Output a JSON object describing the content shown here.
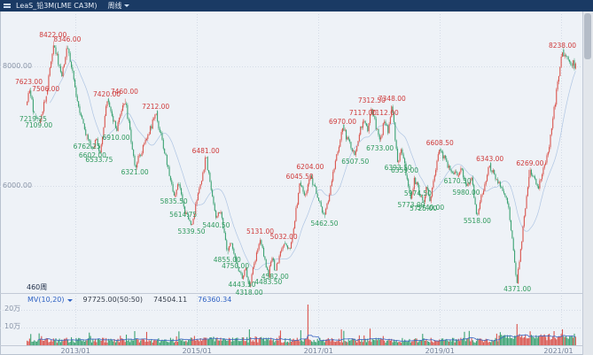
{
  "header": {
    "title": "LeaS_铅3M(LME CA3M)",
    "period": "周线"
  },
  "indicator_bar": {
    "bars_count": "460周",
    "mv_label": "MV(10,20)",
    "values": [
      {
        "name": "current",
        "text": "97725.00(50:50)",
        "color": "#39414e"
      },
      {
        "name": "ma10",
        "text": "74504.11",
        "color": "#39414e"
      },
      {
        "name": "ma20",
        "text": "76360.34",
        "color": "#2f62c4"
      }
    ]
  },
  "colors": {
    "up": "#d9544d",
    "down": "#3ba272",
    "up_label": "#cf3b3b",
    "down_label": "#2f9a5d",
    "grid": "#d4dbe6",
    "divider": "#c2cad6",
    "vol_ma": "#3b66c4",
    "price_ma": "#7aa0d4",
    "titlebar_bg": "#1a3a64",
    "accent_blue": "#2f62c4"
  },
  "chart_data": {
    "type": "candlestick",
    "instrument": "LeaS_铅3M(LME CA3M)",
    "period": "周线",
    "weeks_visible": 460,
    "convention": "red=up green=down",
    "ylim": [
      4200,
      8900
    ],
    "y_ticks": [
      {
        "label": "8000.00",
        "price": 8000
      },
      {
        "label": "6000.00",
        "price": 6000
      }
    ],
    "volume_ticks": [
      {
        "label": "20万",
        "wan": 20
      },
      {
        "label": "10万",
        "wan": 10
      }
    ],
    "x_ticks": [
      {
        "label": "2013/01",
        "f": 0.089
      },
      {
        "label": "2015/01",
        "f": 0.31
      },
      {
        "label": "2017/01",
        "f": 0.531
      },
      {
        "label": "2019/01",
        "f": 0.752
      },
      {
        "label": "2021/01",
        "f": 0.973
      }
    ],
    "price_anchors": [
      [
        0.0,
        7350
      ],
      [
        0.004,
        7623
      ],
      [
        0.012,
        7219.25
      ],
      [
        0.022,
        7109
      ],
      [
        0.035,
        7506
      ],
      [
        0.048,
        8422
      ],
      [
        0.062,
        7850
      ],
      [
        0.074,
        8346
      ],
      [
        0.09,
        7500
      ],
      [
        0.11,
        6762.25
      ],
      [
        0.12,
        6602
      ],
      [
        0.126,
        6800
      ],
      [
        0.132,
        6533.75
      ],
      [
        0.146,
        7420
      ],
      [
        0.163,
        6910
      ],
      [
        0.178,
        7460
      ],
      [
        0.197,
        6321
      ],
      [
        0.235,
        7212
      ],
      [
        0.268,
        5835.5
      ],
      [
        0.277,
        6080
      ],
      [
        0.285,
        5614.75
      ],
      [
        0.3,
        5339.5
      ],
      [
        0.326,
        6481
      ],
      [
        0.345,
        5440.5
      ],
      [
        0.352,
        5620
      ],
      [
        0.365,
        4855
      ],
      [
        0.372,
        5090
      ],
      [
        0.38,
        4750
      ],
      [
        0.392,
        4443.5
      ],
      [
        0.398,
        4620
      ],
      [
        0.405,
        4318
      ],
      [
        0.425,
        5131
      ],
      [
        0.44,
        4483.5
      ],
      [
        0.446,
        4860
      ],
      [
        0.452,
        4582
      ],
      [
        0.468,
        5032
      ],
      [
        0.48,
        4920
      ],
      [
        0.497,
        6045.5
      ],
      [
        0.507,
        5840
      ],
      [
        0.516,
        6204
      ],
      [
        0.542,
        5462.5
      ],
      [
        0.575,
        6970
      ],
      [
        0.598,
        6507.5
      ],
      [
        0.612,
        7117
      ],
      [
        0.62,
        6920
      ],
      [
        0.628,
        7312.5
      ],
      [
        0.643,
        6733
      ],
      [
        0.652,
        7112
      ],
      [
        0.658,
        6930
      ],
      [
        0.665,
        7348
      ],
      [
        0.676,
        6393.5
      ],
      [
        0.682,
        6580
      ],
      [
        0.688,
        6359
      ],
      [
        0.7,
        5773
      ],
      [
        0.706,
        6120
      ],
      [
        0.712,
        5974.5
      ],
      [
        0.722,
        5725
      ],
      [
        0.728,
        5990
      ],
      [
        0.735,
        5740
      ],
      [
        0.752,
        6608.5
      ],
      [
        0.77,
        6280
      ],
      [
        0.784,
        6170.5
      ],
      [
        0.791,
        6320
      ],
      [
        0.8,
        5980
      ],
      [
        0.81,
        6140
      ],
      [
        0.82,
        5518
      ],
      [
        0.843,
        6343
      ],
      [
        0.862,
        6000
      ],
      [
        0.878,
        5650
      ],
      [
        0.893,
        4371
      ],
      [
        0.916,
        6269
      ],
      [
        0.932,
        5990
      ],
      [
        0.95,
        6550
      ],
      [
        0.975,
        8238
      ],
      [
        1.0,
        8000
      ]
    ],
    "annotations": [
      {
        "text": "7623.00",
        "price": 7623,
        "side": "H",
        "f": 0.004
      },
      {
        "text": "7219.25",
        "price": 7219.25,
        "side": "L",
        "f": 0.012
      },
      {
        "text": "7109.00",
        "price": 7109,
        "side": "L",
        "f": 0.022
      },
      {
        "text": "7506.00",
        "price": 7506,
        "side": "H",
        "f": 0.035
      },
      {
        "text": "8422.00",
        "price": 8422,
        "side": "H",
        "f": 0.048
      },
      {
        "text": "8346.00",
        "price": 8346,
        "side": "H",
        "f": 0.074
      },
      {
        "text": "6762.25",
        "price": 6762.25,
        "side": "L",
        "f": 0.11
      },
      {
        "text": "6602.00",
        "price": 6602,
        "side": "L",
        "f": 0.12
      },
      {
        "text": "6533.75",
        "price": 6533.75,
        "side": "L",
        "f": 0.132
      },
      {
        "text": "7420.00",
        "price": 7420,
        "side": "H",
        "f": 0.146
      },
      {
        "text": "6910.00",
        "price": 6910,
        "side": "L",
        "f": 0.163
      },
      {
        "text": "7460.00",
        "price": 7460,
        "side": "H",
        "f": 0.178
      },
      {
        "text": "6321.00",
        "price": 6321,
        "side": "L",
        "f": 0.197
      },
      {
        "text": "7212.00",
        "price": 7212,
        "side": "H",
        "f": 0.235
      },
      {
        "text": "5835.50",
        "price": 5835.5,
        "side": "L",
        "f": 0.268
      },
      {
        "text": "5614.75",
        "price": 5614.75,
        "side": "L",
        "f": 0.285
      },
      {
        "text": "5339.50",
        "price": 5339.5,
        "side": "L",
        "f": 0.3
      },
      {
        "text": "6481.00",
        "price": 6481,
        "side": "H",
        "f": 0.326
      },
      {
        "text": "5440.50",
        "price": 5440.5,
        "side": "L",
        "f": 0.345
      },
      {
        "text": "4855.00",
        "price": 4855,
        "side": "L",
        "f": 0.365
      },
      {
        "text": "4750.00",
        "price": 4750,
        "side": "L",
        "f": 0.38
      },
      {
        "text": "4443.50",
        "price": 4443.5,
        "side": "L",
        "f": 0.392
      },
      {
        "text": "4318.00",
        "price": 4318,
        "side": "L",
        "f": 0.405
      },
      {
        "text": "5131.00",
        "price": 5131,
        "side": "H",
        "f": 0.425
      },
      {
        "text": "4483.50",
        "price": 4483.5,
        "side": "L",
        "f": 0.44
      },
      {
        "text": "4582.00",
        "price": 4582,
        "side": "L",
        "f": 0.452
      },
      {
        "text": "5032.00",
        "price": 5032,
        "side": "H",
        "f": 0.468
      },
      {
        "text": "6045.50",
        "price": 6045.5,
        "side": "H",
        "f": 0.497
      },
      {
        "text": "6204.00",
        "price": 6204,
        "side": "H",
        "f": 0.516
      },
      {
        "text": "5462.50",
        "price": 5462.5,
        "side": "L",
        "f": 0.542
      },
      {
        "text": "6970.00",
        "price": 6970,
        "side": "H",
        "f": 0.575
      },
      {
        "text": "6507.50",
        "price": 6507.5,
        "side": "L",
        "f": 0.598
      },
      {
        "text": "7117.00",
        "price": 7117,
        "side": "H",
        "f": 0.612
      },
      {
        "text": "7312.50",
        "price": 7312.5,
        "side": "H",
        "f": 0.628
      },
      {
        "text": "6733.00",
        "price": 6733,
        "side": "L",
        "f": 0.643
      },
      {
        "text": "7112.00",
        "price": 7112,
        "side": "H",
        "f": 0.652
      },
      {
        "text": "7348.00",
        "price": 7348,
        "side": "H",
        "f": 0.665
      },
      {
        "text": "6393.50",
        "price": 6393.5,
        "side": "L",
        "f": 0.676
      },
      {
        "text": "6359.00",
        "price": 6359,
        "side": "L",
        "f": 0.688
      },
      {
        "text": "5773.00",
        "price": 5773,
        "side": "L",
        "f": 0.7
      },
      {
        "text": "5974.50",
        "price": 5974.5,
        "side": "L",
        "f": 0.712
      },
      {
        "text": "5725.00",
        "price": 5725,
        "side": "L",
        "f": 0.722
      },
      {
        "text": "5740.00",
        "price": 5740,
        "side": "L",
        "f": 0.735
      },
      {
        "text": "6608.50",
        "price": 6608.5,
        "side": "H",
        "f": 0.752
      },
      {
        "text": "6170.50",
        "price": 6170.5,
        "side": "L",
        "f": 0.784
      },
      {
        "text": "5980.00",
        "price": 5980,
        "side": "L",
        "f": 0.8
      },
      {
        "text": "5518.00",
        "price": 5518,
        "side": "L",
        "f": 0.82
      },
      {
        "text": "6343.00",
        "price": 6343,
        "side": "H",
        "f": 0.843
      },
      {
        "text": "4371.00",
        "price": 4371,
        "side": "L",
        "f": 0.893
      },
      {
        "text": "6269.00",
        "price": 6269,
        "side": "H",
        "f": 0.916
      },
      {
        "text": "8238.00",
        "price": 8238,
        "side": "H",
        "f": 0.975
      }
    ],
    "volume_spikes": [
      {
        "f": 0.197,
        "wan": 8,
        "dir": "down"
      },
      {
        "f": 0.405,
        "wan": 9,
        "dir": "down"
      },
      {
        "f": 0.511,
        "wan": 23,
        "dir": "up"
      },
      {
        "f": 0.893,
        "wan": 12,
        "dir": "up"
      },
      {
        "f": 0.96,
        "wan": 8,
        "dir": "up"
      },
      {
        "f": 0.975,
        "wan": 9,
        "dir": "up"
      }
    ]
  }
}
